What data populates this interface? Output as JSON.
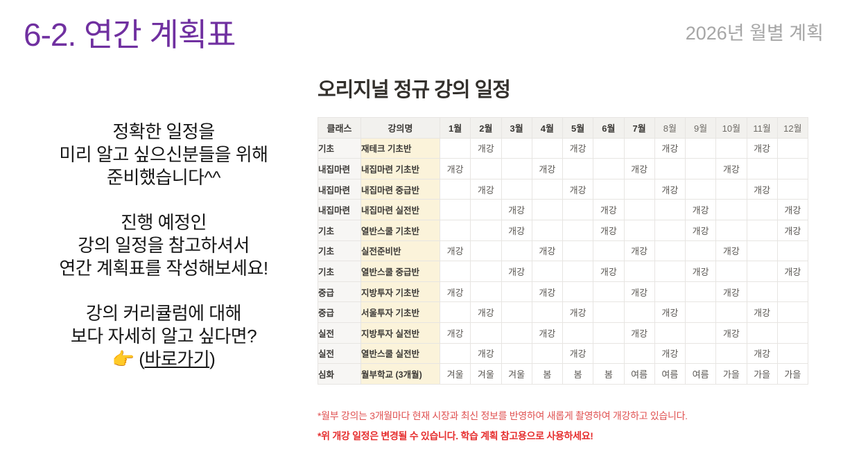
{
  "header": {
    "title": "6-2. 연간 계획표",
    "subtitle": "2026년 월별 계획"
  },
  "intro": {
    "para1": [
      "정확한 일정을",
      "미리 알고 싶으신분들을 위해",
      "준비했습니다^^"
    ],
    "para2": [
      "진행 예정인",
      "강의 일정을 참고하셔서",
      "연간 계획표를 작성해보세요!"
    ],
    "para3": [
      "강의 커리큘럼에 대해",
      "보다 자세히 알고 싶다면?"
    ],
    "cta": {
      "emoji": "👉",
      "pre": " (",
      "link": "바로가기",
      "post": ")"
    }
  },
  "schedule": {
    "title": "오리지널 정규 강의 일정",
    "col_class": "클래스",
    "col_course": "강의명",
    "months": [
      "1월",
      "2월",
      "3월",
      "4월",
      "5월",
      "6월",
      "7월",
      "8월",
      "9월",
      "10월",
      "11월",
      "12월"
    ],
    "bold_months_count": 7,
    "rows": [
      {
        "class": "기초",
        "course": "재테크 기초반",
        "cells": [
          "",
          "개강",
          "",
          "",
          "개강",
          "",
          "",
          "개강",
          "",
          "",
          "개강",
          ""
        ]
      },
      {
        "class": "내집마련",
        "course": "내집마련 기초반",
        "cells": [
          "개강",
          "",
          "",
          "개강",
          "",
          "",
          "개강",
          "",
          "",
          "개강",
          "",
          ""
        ]
      },
      {
        "class": "내집마련",
        "course": "내집마련 중급반",
        "cells": [
          "",
          "개강",
          "",
          "",
          "개강",
          "",
          "",
          "개강",
          "",
          "",
          "개강",
          ""
        ]
      },
      {
        "class": "내집마련",
        "course": "내집마련 실전반",
        "cells": [
          "",
          "",
          "개강",
          "",
          "",
          "개강",
          "",
          "",
          "개강",
          "",
          "",
          "개강"
        ]
      },
      {
        "class": "기초",
        "course": "열반스쿨 기초반",
        "cells": [
          "",
          "",
          "개강",
          "",
          "",
          "개강",
          "",
          "",
          "개강",
          "",
          "",
          "개강"
        ]
      },
      {
        "class": "기초",
        "course": "실전준비반",
        "cells": [
          "개강",
          "",
          "",
          "개강",
          "",
          "",
          "개강",
          "",
          "",
          "개강",
          "",
          ""
        ]
      },
      {
        "class": "기초",
        "course": "열반스쿨 중급반",
        "cells": [
          "",
          "",
          "개강",
          "",
          "",
          "개강",
          "",
          "",
          "개강",
          "",
          "",
          "개강"
        ]
      },
      {
        "class": "중급",
        "course": "지방투자 기초반",
        "cells": [
          "개강",
          "",
          "",
          "개강",
          "",
          "",
          "개강",
          "",
          "",
          "개강",
          "",
          ""
        ]
      },
      {
        "class": "중급",
        "course": "서울투자 기초반",
        "cells": [
          "",
          "개강",
          "",
          "",
          "개강",
          "",
          "",
          "개강",
          "",
          "",
          "개강",
          ""
        ]
      },
      {
        "class": "실전",
        "course": "지방투자 실전반",
        "cells": [
          "개강",
          "",
          "",
          "개강",
          "",
          "",
          "개강",
          "",
          "",
          "개강",
          "",
          ""
        ]
      },
      {
        "class": "실전",
        "course": "열반스쿨 실전반",
        "cells": [
          "",
          "개강",
          "",
          "",
          "개강",
          "",
          "",
          "개강",
          "",
          "",
          "개강",
          ""
        ]
      },
      {
        "class": "심화",
        "course": "월부학교 (3개월)",
        "cells": [
          "겨울",
          "겨울",
          "겨울",
          "봄",
          "봄",
          "봄",
          "여름",
          "여름",
          "여름",
          "가을",
          "가을",
          "가을"
        ]
      }
    ]
  },
  "footnotes": [
    {
      "text": "*월부 강의는 3개월마다 현재 시장과 최신 정보를 반영하여 새롭게 촬영하여 개강하고 있습니다.",
      "bold": false
    },
    {
      "text": "*위 개강 일정은 변경될 수 있습니다. 학습 계획 참고용으로 사용하세요!",
      "bold": true
    }
  ],
  "colors": {
    "accent_purple": "#7030a0",
    "subtitle_gray": "#a6a6a6",
    "course_column_cream": "#fbf3da",
    "header_row_gray": "#f2f1ee",
    "footnote_red": "#e05252",
    "footnote_red_bold": "#e62e2e"
  }
}
